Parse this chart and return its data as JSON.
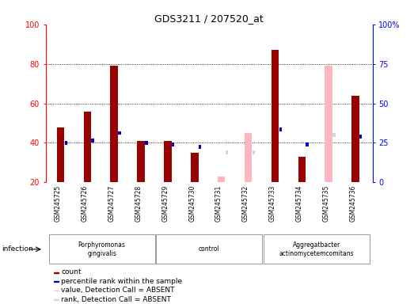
{
  "title": "GDS3211 / 207520_at",
  "samples": [
    "GSM245725",
    "GSM245726",
    "GSM245727",
    "GSM245728",
    "GSM245729",
    "GSM245730",
    "GSM245731",
    "GSM245732",
    "GSM245733",
    "GSM245734",
    "GSM245735",
    "GSM245736"
  ],
  "absent": [
    false,
    false,
    false,
    false,
    false,
    false,
    true,
    true,
    false,
    false,
    true,
    false
  ],
  "count_values": [
    48,
    56,
    79,
    41,
    41,
    35,
    23,
    45,
    87,
    33,
    79,
    64
  ],
  "rank_values": [
    40,
    41,
    45,
    40,
    39,
    38,
    35,
    35,
    47,
    39,
    44,
    43
  ],
  "ylim": [
    20,
    100
  ],
  "y2lim": [
    0,
    100
  ],
  "yticks": [
    20,
    40,
    60,
    80,
    100
  ],
  "y2ticks": [
    0,
    25,
    50,
    75,
    100
  ],
  "color_count_present": "#990000",
  "color_rank_present": "#0000CC",
  "color_count_absent": "#FFB6C1",
  "color_rank_absent": "#C8D8F0",
  "group_green": "#90EE90",
  "xtick_bg": "#D3D3D3",
  "groups": [
    {
      "label": "Porphyromonas\ngingivalis",
      "start": 0,
      "end": 3
    },
    {
      "label": "control",
      "start": 4,
      "end": 7
    },
    {
      "label": "Aggregatbacter\nactinomycetemcomitans",
      "start": 8,
      "end": 11
    }
  ],
  "legend_items": [
    {
      "color": "#990000",
      "label": "count"
    },
    {
      "color": "#0000CC",
      "label": "percentile rank within the sample"
    },
    {
      "color": "#FFB6C1",
      "label": "value, Detection Call = ABSENT"
    },
    {
      "color": "#C8D8F0",
      "label": "rank, Detection Call = ABSENT"
    }
  ]
}
